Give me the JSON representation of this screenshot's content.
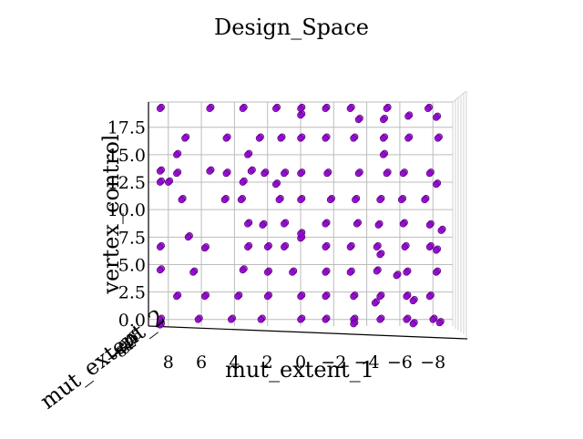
{
  "chart_data": {
    "type": "scatter",
    "projection": "3d",
    "title": "Design_Space",
    "xlabel": "mut_extent_1",
    "ylabel": "mut_extent_2",
    "zlabel": "vertex_control",
    "x_ticks": [
      "8",
      "6",
      "4",
      "2",
      "0",
      "−2",
      "−4",
      "−6",
      "−8"
    ],
    "z_ticks": [
      "0.0",
      "2.5",
      "5.0",
      "7.5",
      "10.0",
      "12.5",
      "15.0",
      "17.5"
    ],
    "y_ticks": [
      "−8",
      "−6",
      "−4",
      "−2",
      "0",
      "2",
      "4",
      "6",
      "8"
    ],
    "xlim": [
      9.2,
      -9.2
    ],
    "zlim": [
      -0.6,
      19.8
    ],
    "grid": true,
    "marker_color": "#9400d3",
    "marker_edge": "#5a0080",
    "points": [
      [
        8.5,
        19.2,
        0
      ],
      [
        5.5,
        19.2,
        0
      ],
      [
        3.5,
        19.2,
        0
      ],
      [
        1.5,
        19.2,
        0
      ],
      [
        0,
        19.2,
        0
      ],
      [
        0,
        18.6,
        0
      ],
      [
        -1.5,
        19.2,
        0
      ],
      [
        -3,
        19.2,
        0
      ],
      [
        -3.5,
        18.2,
        0
      ],
      [
        -5.2,
        19.2,
        0
      ],
      [
        -5,
        18.2,
        0
      ],
      [
        -6.5,
        18.5,
        0
      ],
      [
        -7.7,
        19.2,
        0
      ],
      [
        -8.2,
        18.4,
        0
      ],
      [
        7,
        16.5,
        0
      ],
      [
        4.5,
        16.5,
        0
      ],
      [
        2.5,
        16.5,
        0
      ],
      [
        1.2,
        16.5,
        0
      ],
      [
        0,
        16.5,
        0
      ],
      [
        -1.5,
        16.5,
        0
      ],
      [
        -3.2,
        16.5,
        0
      ],
      [
        -5,
        16.5,
        0
      ],
      [
        -6.5,
        16.5,
        0
      ],
      [
        -8.3,
        16.5,
        0
      ],
      [
        7.5,
        15,
        0
      ],
      [
        3.2,
        15,
        0
      ],
      [
        -5,
        15,
        0
      ],
      [
        8.5,
        13.5,
        0
      ],
      [
        7.5,
        13.3,
        0
      ],
      [
        5.5,
        13.5,
        0
      ],
      [
        4.5,
        13.3,
        0
      ],
      [
        3,
        13.5,
        0
      ],
      [
        2.2,
        13.3,
        0
      ],
      [
        1,
        13.3,
        0
      ],
      [
        0,
        13.3,
        0
      ],
      [
        -1.6,
        13.3,
        0
      ],
      [
        -3.5,
        13.3,
        0
      ],
      [
        -5.2,
        13.3,
        0
      ],
      [
        -6.2,
        13.3,
        0
      ],
      [
        -7.8,
        13.3,
        0
      ],
      [
        8.5,
        12.5,
        0
      ],
      [
        8,
        12.5,
        0
      ],
      [
        3.5,
        12.5,
        0
      ],
      [
        1.5,
        12.3,
        0
      ],
      [
        -8.2,
        12.3,
        0
      ],
      [
        7.2,
        10.9,
        0
      ],
      [
        4.6,
        10.9,
        0
      ],
      [
        3.6,
        10.9,
        0
      ],
      [
        1.3,
        10.9,
        0
      ],
      [
        0,
        10.9,
        0
      ],
      [
        -1.8,
        10.9,
        0
      ],
      [
        -3.3,
        10.9,
        0
      ],
      [
        -4.8,
        10.9,
        0
      ],
      [
        -6.1,
        10.9,
        0
      ],
      [
        -7.5,
        10.9,
        0
      ],
      [
        3.2,
        8.7,
        0
      ],
      [
        2.3,
        8.6,
        0
      ],
      [
        1,
        8.7,
        0
      ],
      [
        -1.5,
        8.7,
        0
      ],
      [
        -3.4,
        8.7,
        0
      ],
      [
        -4.7,
        8.6,
        0
      ],
      [
        -6.2,
        8.7,
        0
      ],
      [
        -7.8,
        8.6,
        0
      ],
      [
        0,
        7.4,
        0
      ],
      [
        0,
        7.8,
        0
      ],
      [
        -8.5,
        8.1,
        0
      ],
      [
        8.5,
        6.6,
        0
      ],
      [
        5.8,
        6.5,
        0
      ],
      [
        3.2,
        6.6,
        0
      ],
      [
        2,
        6.6,
        0
      ],
      [
        1,
        6.6,
        0
      ],
      [
        -1.5,
        6.6,
        0
      ],
      [
        -3,
        6.6,
        0
      ],
      [
        -4.6,
        6.6,
        0
      ],
      [
        -6.3,
        6.6,
        0
      ],
      [
        -7.8,
        6.6,
        0
      ],
      [
        6.8,
        7.5,
        0
      ],
      [
        -4.8,
        5.9,
        0
      ],
      [
        -8.2,
        6.3,
        0
      ],
      [
        8.5,
        4.5,
        0
      ],
      [
        6.5,
        4.3,
        0
      ],
      [
        3.5,
        4.5,
        0
      ],
      [
        2,
        4.3,
        0
      ],
      [
        0.5,
        4.3,
        0
      ],
      [
        -1.5,
        4.3,
        0
      ],
      [
        -3,
        4.3,
        0
      ],
      [
        -4.6,
        4.4,
        0
      ],
      [
        -6.4,
        4.3,
        0
      ],
      [
        -8.2,
        4.3,
        0
      ],
      [
        -5.8,
        4.0,
        0
      ],
      [
        7.5,
        2.1,
        0
      ],
      [
        5.8,
        2.1,
        0
      ],
      [
        3.8,
        2.1,
        0
      ],
      [
        2,
        2.1,
        0
      ],
      [
        0,
        2.1,
        0
      ],
      [
        -1.5,
        2.1,
        0
      ],
      [
        -3.2,
        2.1,
        0
      ],
      [
        -4.8,
        2.1,
        0
      ],
      [
        -6.4,
        2.1,
        0
      ],
      [
        -7.8,
        2.1,
        0
      ],
      [
        -4.5,
        1.5,
        0
      ],
      [
        -6.8,
        1.7,
        0
      ],
      [
        8.5,
        0,
        0
      ],
      [
        6.2,
        0,
        0
      ],
      [
        4.2,
        0,
        0
      ],
      [
        2.4,
        0,
        0
      ],
      [
        0,
        0,
        0
      ],
      [
        -1.5,
        0,
        0
      ],
      [
        -3.2,
        0,
        0
      ],
      [
        -4.8,
        0,
        0
      ],
      [
        -6.4,
        0,
        0
      ],
      [
        -8.0,
        0,
        0
      ],
      [
        8.5,
        -0.5,
        0
      ],
      [
        -3.2,
        -0.4,
        0
      ],
      [
        -6.8,
        -0.4,
        0
      ],
      [
        -8.4,
        -0.3,
        0
      ]
    ]
  }
}
